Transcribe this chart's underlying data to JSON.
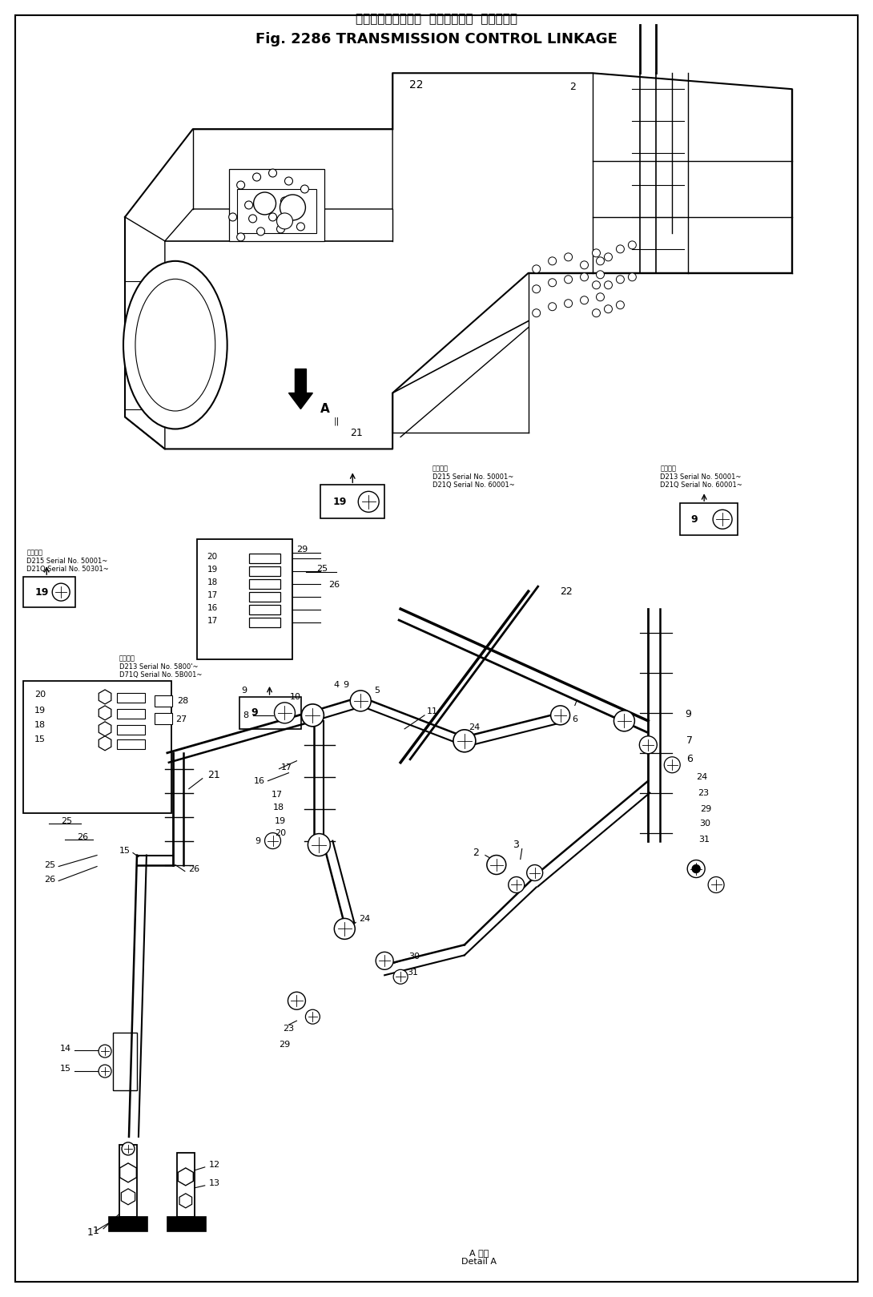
{
  "title_japanese": "トランスミッション  コントロール  リンケージ",
  "title_english": "Fig. 2286 TRANSMISSION CONTROL LINKAGE",
  "bg": "#ffffff",
  "fg": "#000000",
  "fig_w": 10.9,
  "fig_h": 16.19,
  "dpi": 100,
  "note0": "適用年式\nD215 Serial No. 50001~\nD21Q Serial No. 60001~",
  "note1": "適用年式\nD213 Serial No. 50001~\nD21Q Serial No. 60001~",
  "note2": "適用年式\nD215 Serial No. 50001~\nD21Q Serial No. 50301~",
  "note3": "適用年式\nD213 Serial No. 5800'~\nD71Q Serial No. 5B001~",
  "detail_a": "A 詳細\nDetail A"
}
